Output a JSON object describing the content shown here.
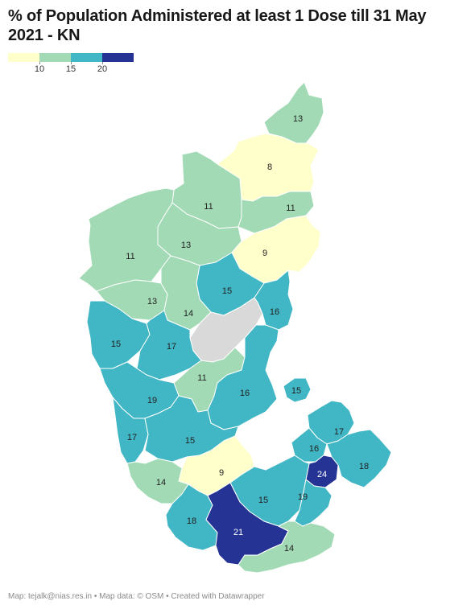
{
  "title": "% of Population Administered at least 1 Dose till 31 May 2021 - KN",
  "legend": {
    "colors": [
      "#ffffcc",
      "#a1dab4",
      "#41b6c4",
      "#253494"
    ],
    "ticks": [
      "10",
      "15",
      "20"
    ]
  },
  "colors": {
    "low": "#ffffcc",
    "mid_low": "#a1dab4",
    "mid_high": "#41b6c4",
    "high": "#253494",
    "no_data": "#d9d9d9"
  },
  "districts": [
    {
      "value": "13",
      "color": "#a1dab4"
    },
    {
      "value": "8",
      "color": "#ffffcc"
    },
    {
      "value": "11",
      "color": "#a1dab4"
    },
    {
      "value": "11",
      "color": "#a1dab4"
    },
    {
      "value": "13",
      "color": "#a1dab4"
    },
    {
      "value": "11",
      "color": "#a1dab4"
    },
    {
      "value": "9",
      "color": "#ffffcc"
    },
    {
      "value": "15",
      "color": "#41b6c4"
    },
    {
      "value": "13",
      "color": "#a1dab4"
    },
    {
      "value": "14",
      "color": "#a1dab4"
    },
    {
      "value": "16",
      "color": "#41b6c4"
    },
    {
      "value": "",
      "color": "#d9d9d9"
    },
    {
      "value": "15",
      "color": "#41b6c4"
    },
    {
      "value": "17",
      "color": "#41b6c4"
    },
    {
      "value": "11",
      "color": "#a1dab4"
    },
    {
      "value": "16",
      "color": "#41b6c4"
    },
    {
      "value": "15",
      "color": "#41b6c4"
    },
    {
      "value": "19",
      "color": "#41b6c4"
    },
    {
      "value": "17",
      "color": "#41b6c4"
    },
    {
      "value": "15",
      "color": "#41b6c4"
    },
    {
      "value": "17",
      "color": "#41b6c4"
    },
    {
      "value": "16",
      "color": "#41b6c4"
    },
    {
      "value": "9",
      "color": "#ffffcc"
    },
    {
      "value": "24",
      "color": "#253494"
    },
    {
      "value": "18",
      "color": "#41b6c4"
    },
    {
      "value": "14",
      "color": "#a1dab4"
    },
    {
      "value": "15",
      "color": "#41b6c4"
    },
    {
      "value": "19",
      "color": "#41b6c4"
    },
    {
      "value": "18",
      "color": "#41b6c4"
    },
    {
      "value": "21",
      "color": "#253494"
    },
    {
      "value": "14",
      "color": "#a1dab4"
    }
  ],
  "footer": "Map: tejalk@nias.res.in • Map data: © OSM • Created with Datawrapper"
}
